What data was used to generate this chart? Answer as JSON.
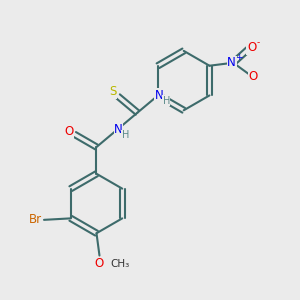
{
  "bg_color": "#ebebeb",
  "bond_color": "#3d6b6b",
  "bond_width": 1.5,
  "atom_colors": {
    "S": "#b8b800",
    "N": "#0000ee",
    "O": "#ee0000",
    "Br": "#cc6600",
    "C": "#3d6b6b",
    "H": "#5a8a8a"
  }
}
